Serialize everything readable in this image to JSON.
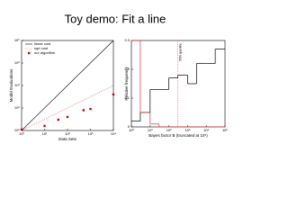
{
  "slide_title": "Toy demo: Fit a line",
  "chart_data": [
    {
      "type": "line",
      "xlabel": "Data Sets",
      "ylabel": "Model Evaluations",
      "xlog": true,
      "ylog": true,
      "xlim": [
        1,
        10000
      ],
      "ylim": [
        100000,
        1000000000
      ],
      "xticks": [
        {
          "value": 1,
          "label": "10⁰"
        },
        {
          "value": 10,
          "label": "10¹"
        },
        {
          "value": 100,
          "label": "10²"
        },
        {
          "value": 1000,
          "label": "10³"
        },
        {
          "value": 10000,
          "label": "10⁴"
        }
      ],
      "yticks": [
        {
          "value": 100000,
          "label": "10⁵"
        },
        {
          "value": 1000000,
          "label": "10⁶"
        },
        {
          "value": 10000000,
          "label": "10⁷"
        },
        {
          "value": 100000000,
          "label": "10⁸"
        },
        {
          "value": 1000000000,
          "label": "10⁹"
        }
      ],
      "legend": "upper-left",
      "series": [
        {
          "name": "linear cost",
          "color": "#000000",
          "style": "solid",
          "x": [
            1,
            10000
          ],
          "values": [
            100000,
            1000000000
          ]
        },
        {
          "name": "sqrt cost",
          "color": "#e06060",
          "style": "dotted",
          "x": [
            1,
            10000
          ],
          "values": [
            100000,
            10000000
          ]
        },
        {
          "name": "our algorithm",
          "color": "#cc0000",
          "style": "markers",
          "x": [
            1,
            10,
            40,
            100,
            500,
            1000,
            10000
          ],
          "values": [
            110000,
            160000,
            300000,
            400000,
            800000,
            900000,
            4000000
          ]
        }
      ]
    },
    {
      "type": "histogram",
      "xlabel": "Bayes factor B (truncated at 10⁵)",
      "ylabel": "Relative frequency",
      "xlog": true,
      "xlim": [
        1,
        100000
      ],
      "ylim": [
        0,
        0.3
      ],
      "xticks": [
        {
          "value": 1,
          "label": "10⁰"
        },
        {
          "value": 10,
          "label": "10¹"
        },
        {
          "value": 100,
          "label": "10²"
        },
        {
          "value": 1000,
          "label": "10³"
        },
        {
          "value": 10000,
          "label": "10⁴"
        },
        {
          "value": 100000,
          "label": "10⁵"
        }
      ],
      "yticks": [
        0,
        0.1,
        0.2,
        0.3
      ],
      "bins": [
        1,
        3,
        10,
        30,
        100,
        300,
        1000,
        3000,
        10000,
        30000,
        100000
      ],
      "series": [
        {
          "color": "#000000",
          "values": [
            0.02,
            0.05,
            0.13,
            0.13,
            0.17,
            0.18,
            0.15,
            0.22,
            0.22,
            0.27
          ]
        },
        {
          "color": "#e03030",
          "values": [
            0.3,
            0.05,
            0.01,
            0,
            0,
            0,
            0,
            0,
            0,
            0
          ]
        }
      ],
      "quantile_x": 300,
      "quantile_label": "95th quantile"
    }
  ]
}
